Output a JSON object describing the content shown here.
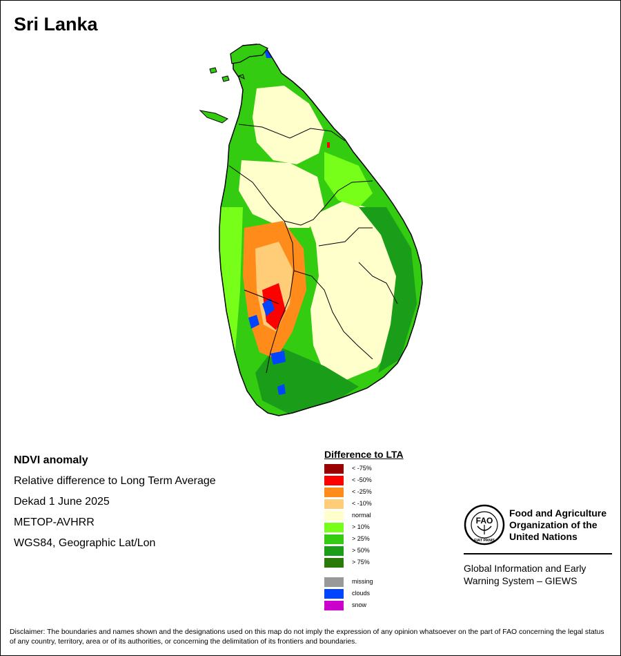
{
  "map": {
    "title": "Sri Lanka",
    "info_lines": [
      "NDVI anomaly",
      "Relative difference to Long Term Average",
      "Dekad 1 June 2025",
      "METOP-AVHRR",
      "WGS84, Geographic Lat/Lon"
    ]
  },
  "legend": {
    "title": "Difference to LTA",
    "items": [
      {
        "label": "< -75%",
        "color": "#990000"
      },
      {
        "label": "< -50%",
        "color": "#ff0000"
      },
      {
        "label": "< -25%",
        "color": "#ff8c1a"
      },
      {
        "label": "< -10%",
        "color": "#ffcc77"
      },
      {
        "label": "normal",
        "color": "#ffffcc"
      },
      {
        "label": "> 10%",
        "color": "#77ff1a"
      },
      {
        "label": "> 25%",
        "color": "#33cc11"
      },
      {
        "label": "> 50%",
        "color": "#1a9e1a"
      },
      {
        "label": "> 75%",
        "color": "#2a7a0a"
      }
    ],
    "extra_items": [
      {
        "label": "missing",
        "color": "#999999"
      },
      {
        "label": "clouds",
        "color": "#0044ff"
      },
      {
        "label": "snow",
        "color": "#cc00cc"
      }
    ]
  },
  "organization": {
    "logo_text": "FAO",
    "logo_motto": "FIAT PANIS",
    "name_lines": [
      "Food and Agriculture",
      "Organization of the",
      "United Nations"
    ],
    "system_lines": [
      "Global Information and Early",
      "Warning System – GIEWS"
    ]
  },
  "disclaimer": "Disclaimer: The boundaries and names shown and the designations used on this map do not imply the expression of any opinion whatsoever on the part of FAO concerning the legal status of any country, territory, area or of its authorities, or concerning the delimitation of its frontiers and boundaries."
}
